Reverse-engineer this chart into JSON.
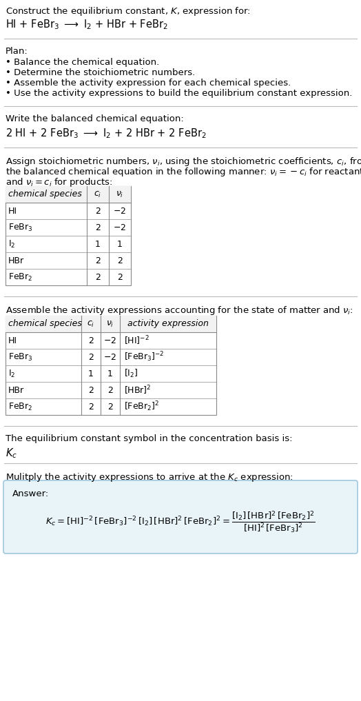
{
  "bg_color": "#ffffff",
  "text_color": "#000000",
  "section_bg": "#e8f4f8",
  "section_border": "#a0c8e0",
  "table1_cols": [
    "chemical species",
    "c_i",
    "v_i"
  ],
  "table1_data": [
    [
      "HI",
      "2",
      "-2"
    ],
    [
      "FeBr3",
      "2",
      "-2"
    ],
    [
      "I2",
      "1",
      "1"
    ],
    [
      "HBr",
      "2",
      "2"
    ],
    [
      "FeBr2",
      "2",
      "2"
    ]
  ],
  "table2_cols": [
    "chemical species",
    "c_i",
    "v_i",
    "activity expression"
  ],
  "table2_data": [
    [
      "HI",
      "2",
      "-2",
      "[HI]^{-2}"
    ],
    [
      "FeBr3",
      "2",
      "-2",
      "[FeBr_3]^{-2}"
    ],
    [
      "I2",
      "1",
      "1",
      "[I_2]"
    ],
    [
      "HBr",
      "2",
      "2",
      "[HBr]^{2}"
    ],
    [
      "FeBr2",
      "2",
      "2",
      "[FeBr_2]^{2}"
    ]
  ]
}
